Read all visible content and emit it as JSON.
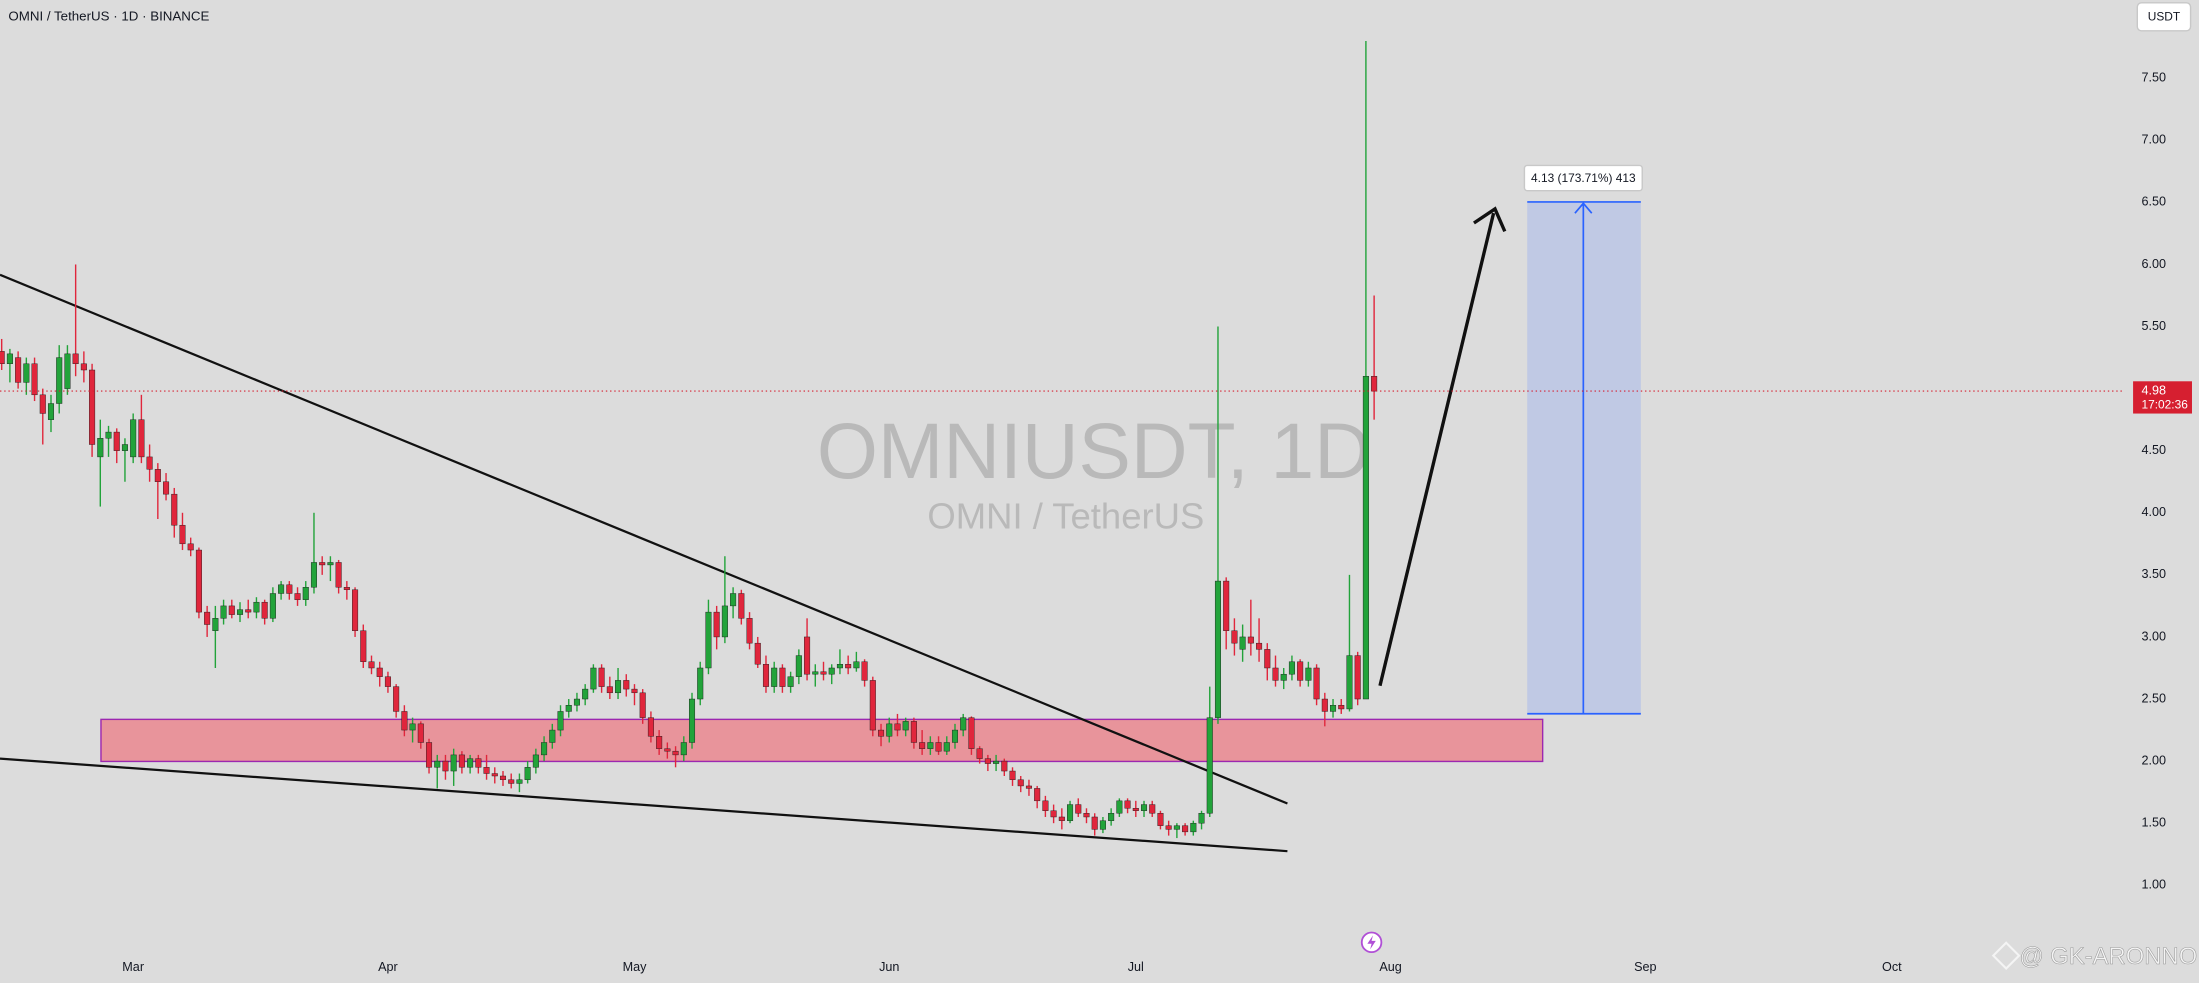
{
  "chart_data": {
    "type": "candlestick",
    "title": "OMNI / TetherUS · 1D · BINANCE",
    "watermark_symbol": "OMNIUSDT, 1D",
    "watermark_name": "OMNI / TetherUS",
    "currency": "USDT",
    "measure_label": "4.13 (173.71%) 413",
    "last_price": 4.98,
    "countdown": "17:02:36",
    "credit": "@ GK-ARONNO",
    "up_color": "#22a33a",
    "down_color": "#e0263c",
    "last_price_color": "#d61f30",
    "categories": [
      null,
      null,
      null,
      null,
      null,
      null,
      null,
      null,
      null,
      null,
      null,
      null,
      null,
      null,
      null,
      null,
      "Mar",
      null,
      null,
      null,
      null,
      null,
      null,
      null,
      null,
      null,
      null,
      null,
      null,
      null,
      null,
      null,
      null,
      null,
      null,
      null,
      null,
      null,
      null,
      null,
      null,
      null,
      null,
      null,
      null,
      null,
      null,
      "Apr",
      null,
      null,
      null,
      null,
      null,
      null,
      null,
      null,
      null,
      null,
      null,
      null,
      null,
      null,
      null,
      null,
      null,
      null,
      null,
      null,
      null,
      null,
      null,
      null,
      null,
      null,
      null,
      null,
      null,
      "May",
      null,
      null,
      null,
      null,
      null,
      null,
      null,
      null,
      null,
      null,
      null,
      null,
      null,
      null,
      null,
      null,
      null,
      null,
      null,
      null,
      null,
      null,
      null,
      null,
      null,
      null,
      null,
      null,
      null,
      null,
      "Jun",
      null,
      null,
      null,
      null,
      null,
      null,
      null,
      null,
      null,
      null,
      null,
      null,
      null,
      null,
      null,
      null,
      null,
      null,
      null,
      null,
      null,
      null,
      null,
      null,
      null,
      null,
      null,
      null,
      null,
      "Jul",
      null,
      null,
      null,
      null,
      null,
      null,
      null,
      null,
      null,
      null,
      null,
      null,
      null,
      null,
      null,
      null,
      null,
      null,
      null,
      null,
      null,
      null,
      null,
      null,
      null,
      null,
      null,
      null,
      null,
      null,
      "Aug",
      null,
      null,
      null,
      null,
      null,
      null,
      null,
      null,
      null,
      null,
      null,
      null,
      null,
      null,
      null,
      null,
      null,
      null,
      null,
      null,
      null,
      null,
      null,
      null,
      null,
      null,
      null,
      null,
      null,
      null,
      "Sep",
      null,
      null,
      null,
      null,
      null,
      null,
      null,
      null,
      null,
      null,
      null,
      null,
      null,
      null,
      null,
      null,
      null,
      null,
      null,
      null,
      null,
      null,
      null,
      null,
      null,
      null,
      null,
      null,
      null,
      "Oct",
      null,
      null,
      null,
      null,
      null,
      null,
      null,
      null,
      null,
      null,
      null,
      null,
      null,
      null,
      null,
      null,
      null,
      null,
      null,
      null,
      null,
      null,
      null,
      null,
      null,
      null,
      null
    ],
    "open": [
      5.3,
      5.2,
      5.25,
      5.05,
      5.2,
      4.95,
      4.75,
      4.88,
      5.0,
      5.28,
      5.2,
      5.15,
      4.45,
      4.6,
      4.65,
      4.5,
      4.45,
      4.75,
      4.45,
      4.35,
      4.25,
      4.15,
      3.9,
      3.75,
      3.7,
      3.2,
      3.05,
      3.15,
      3.25,
      3.18,
      3.22,
      3.2,
      3.28,
      3.15,
      3.35,
      3.42,
      3.35,
      3.3,
      3.4,
      3.6,
      3.58,
      3.6,
      3.4,
      3.38,
      3.05,
      2.8,
      2.75,
      2.68,
      2.6,
      2.4,
      2.25,
      2.3,
      2.15,
      1.95,
      2.0,
      1.92,
      2.05,
      1.95,
      2.02,
      1.95,
      1.9,
      1.88,
      1.85,
      1.82,
      1.85,
      1.95,
      2.05,
      2.15,
      2.25,
      2.4,
      2.45,
      2.5,
      2.58,
      2.75,
      2.6,
      2.55,
      2.65,
      2.58,
      2.55,
      2.35,
      2.2,
      2.1,
      2.08,
      2.05,
      2.15,
      2.5,
      2.75,
      3.2,
      3.0,
      3.25,
      3.35,
      3.15,
      2.95,
      2.78,
      2.6,
      2.75,
      2.6,
      2.68,
      3.0,
      2.7,
      2.72,
      2.7,
      2.75,
      2.78,
      2.75,
      2.8,
      2.65,
      2.25,
      2.2,
      2.3,
      2.25,
      2.32,
      2.15,
      2.1,
      2.15,
      2.08,
      2.15,
      2.25,
      2.35,
      2.1,
      2.02,
      1.98,
      2.0,
      1.92,
      1.85,
      1.8,
      1.78,
      1.68,
      1.6,
      1.55,
      1.52,
      1.65,
      1.58,
      1.55,
      1.45,
      1.52,
      1.58,
      1.68,
      1.62,
      1.6,
      1.65,
      1.58,
      1.48,
      1.45,
      1.48,
      1.43,
      1.5,
      1.58,
      2.35,
      3.45,
      3.05,
      2.9,
      3.0,
      2.95,
      2.9,
      2.75,
      2.65,
      2.7,
      2.8,
      2.65,
      2.75,
      2.5,
      2.4,
      2.45,
      2.42,
      2.85,
      2.5,
      5.1,
      null,
      null,
      null,
      null,
      null,
      null,
      null,
      null,
      null,
      null,
      null,
      null,
      null,
      null,
      null,
      null,
      null,
      null,
      null,
      null,
      null,
      null,
      null,
      null,
      null,
      null,
      null,
      null,
      null,
      null,
      null,
      null,
      null,
      null,
      null,
      null,
      null,
      null,
      null,
      null,
      null,
      null,
      null,
      null,
      null,
      null,
      null,
      null,
      null,
      null,
      null,
      null,
      null,
      null,
      null,
      null,
      null,
      null,
      null,
      null,
      null,
      null,
      null,
      null,
      null,
      null,
      null,
      null,
      null,
      null,
      null,
      null,
      null,
      null,
      null,
      null,
      null,
      null,
      null,
      null,
      null,
      null,
      null,
      null,
      null,
      null,
      null,
      null,
      null,
      null
    ],
    "high": [
      5.4,
      5.32,
      5.3,
      5.25,
      5.25,
      5.0,
      4.95,
      5.35,
      5.35,
      6.0,
      5.3,
      5.2,
      4.75,
      4.7,
      4.68,
      4.6,
      4.8,
      4.95,
      4.55,
      4.4,
      4.32,
      4.2,
      4.0,
      3.8,
      3.72,
      3.25,
      3.25,
      3.3,
      3.3,
      3.28,
      3.3,
      3.32,
      3.3,
      3.4,
      3.45,
      3.45,
      3.4,
      3.45,
      4.0,
      3.65,
      3.65,
      3.62,
      3.45,
      3.4,
      3.1,
      2.85,
      2.8,
      2.72,
      2.62,
      2.45,
      2.35,
      2.32,
      2.18,
      2.05,
      2.05,
      2.1,
      2.08,
      2.05,
      2.05,
      2.05,
      1.95,
      1.92,
      1.9,
      1.9,
      2.0,
      2.1,
      2.2,
      2.3,
      2.45,
      2.5,
      2.55,
      2.62,
      2.78,
      2.78,
      2.68,
      2.75,
      2.7,
      2.62,
      2.58,
      2.4,
      2.25,
      2.15,
      2.12,
      2.2,
      2.55,
      2.8,
      3.3,
      3.25,
      3.65,
      3.4,
      3.38,
      3.2,
      3.0,
      2.85,
      2.8,
      2.78,
      2.72,
      2.9,
      3.15,
      2.78,
      2.8,
      2.78,
      2.9,
      2.85,
      2.88,
      2.82,
      2.68,
      2.3,
      2.35,
      2.38,
      2.35,
      2.35,
      2.25,
      2.2,
      2.2,
      2.2,
      2.3,
      2.38,
      2.36,
      2.12,
      2.05,
      2.05,
      2.02,
      1.95,
      1.88,
      1.85,
      1.8,
      1.72,
      1.65,
      1.62,
      1.68,
      1.7,
      1.62,
      1.58,
      1.55,
      1.62,
      1.7,
      1.7,
      1.68,
      1.68,
      1.68,
      1.6,
      1.52,
      1.5,
      1.5,
      1.52,
      1.6,
      2.6,
      5.5,
      3.48,
      3.15,
      3.1,
      3.3,
      3.15,
      2.95,
      2.85,
      2.75,
      2.85,
      2.82,
      2.8,
      2.78,
      2.55,
      2.5,
      2.5,
      3.5,
      2.88,
      7.8,
      5.75,
      null,
      null,
      null,
      null,
      null,
      null,
      null,
      null,
      null,
      null,
      null,
      null,
      null,
      null,
      null,
      null,
      null,
      null,
      null,
      null,
      null,
      null,
      null,
      null,
      null,
      null,
      null,
      null,
      null,
      null,
      null,
      null,
      null,
      null,
      null,
      null,
      null,
      null,
      null,
      null,
      null,
      null,
      null,
      null,
      null,
      null,
      null,
      null,
      null,
      null,
      null,
      null,
      null,
      null,
      null,
      null,
      null,
      null,
      null,
      null,
      null,
      null,
      null,
      null,
      null,
      null,
      null,
      null,
      null,
      null,
      null,
      null,
      null,
      null,
      null,
      null,
      null,
      null,
      null,
      null,
      null,
      null,
      null,
      null,
      null,
      null,
      null,
      null,
      null,
      null
    ],
    "low": [
      5.15,
      5.05,
      5.0,
      4.95,
      4.9,
      4.55,
      4.65,
      4.8,
      4.95,
      5.1,
      5.05,
      4.45,
      4.05,
      4.45,
      4.4,
      4.25,
      4.4,
      4.4,
      4.25,
      3.95,
      4.1,
      3.8,
      3.7,
      3.65,
      3.15,
      3.0,
      2.75,
      3.1,
      3.15,
      3.12,
      3.15,
      3.15,
      3.1,
      3.12,
      3.3,
      3.3,
      3.25,
      3.25,
      3.35,
      3.5,
      3.45,
      3.35,
      3.3,
      3.0,
      2.75,
      2.7,
      2.6,
      2.55,
      2.35,
      2.2,
      2.15,
      2.1,
      1.9,
      1.78,
      1.85,
      1.8,
      1.9,
      1.9,
      1.9,
      1.85,
      1.82,
      1.8,
      1.78,
      1.75,
      1.82,
      1.9,
      2.0,
      2.1,
      2.2,
      2.35,
      2.4,
      2.45,
      2.55,
      2.55,
      2.5,
      2.5,
      2.52,
      2.45,
      2.3,
      2.15,
      2.05,
      2.02,
      1.95,
      2.0,
      2.1,
      2.45,
      2.7,
      2.9,
      2.95,
      3.15,
      3.1,
      2.9,
      2.75,
      2.55,
      2.55,
      2.55,
      2.55,
      2.62,
      2.65,
      2.6,
      2.65,
      2.62,
      2.7,
      2.7,
      2.72,
      2.6,
      2.2,
      2.12,
      2.15,
      2.2,
      2.2,
      2.1,
      2.05,
      2.05,
      2.05,
      2.05,
      2.1,
      2.2,
      2.05,
      1.98,
      1.92,
      1.92,
      1.88,
      1.8,
      1.75,
      1.72,
      1.62,
      1.55,
      1.5,
      1.45,
      1.5,
      1.55,
      1.5,
      1.4,
      1.42,
      1.48,
      1.55,
      1.58,
      1.55,
      1.55,
      1.55,
      1.45,
      1.4,
      1.38,
      1.4,
      1.4,
      1.45,
      1.55,
      2.3,
      2.9,
      2.85,
      2.8,
      2.85,
      2.8,
      2.65,
      2.6,
      2.58,
      2.65,
      2.6,
      2.6,
      2.45,
      2.28,
      2.35,
      2.38,
      2.4,
      2.45,
      2.5,
      4.75,
      null,
      null,
      null,
      null,
      null,
      null,
      null,
      null,
      null,
      null,
      null,
      null,
      null,
      null,
      null,
      null,
      null,
      null,
      null,
      null,
      null,
      null,
      null,
      null,
      null,
      null,
      null,
      null,
      null,
      null,
      null,
      null,
      null,
      null,
      null,
      null,
      null,
      null,
      null,
      null,
      null,
      null,
      null,
      null,
      null,
      null,
      null,
      null,
      null,
      null,
      null,
      null,
      null,
      null,
      null,
      null,
      null,
      null,
      null,
      null,
      null,
      null,
      null,
      null,
      null,
      null,
      null,
      null,
      null,
      null,
      null,
      null,
      null,
      null,
      null,
      null,
      null,
      null,
      null,
      null,
      null,
      null,
      null,
      null,
      null,
      null,
      null,
      null,
      null,
      null
    ],
    "close": [
      5.2,
      5.28,
      5.05,
      5.2,
      4.95,
      4.8,
      4.88,
      5.25,
      5.28,
      5.2,
      5.15,
      4.55,
      4.6,
      4.65,
      4.5,
      4.55,
      4.75,
      4.45,
      4.35,
      4.25,
      4.15,
      3.9,
      3.75,
      3.7,
      3.2,
      3.1,
      3.15,
      3.25,
      3.18,
      3.22,
      3.2,
      3.28,
      3.15,
      3.35,
      3.42,
      3.35,
      3.3,
      3.4,
      3.6,
      3.58,
      3.6,
      3.4,
      3.38,
      3.05,
      2.8,
      2.75,
      2.68,
      2.6,
      2.4,
      2.25,
      2.3,
      2.15,
      1.95,
      2.0,
      1.92,
      2.05,
      1.95,
      2.02,
      1.95,
      1.9,
      1.88,
      1.85,
      1.82,
      1.85,
      1.95,
      2.05,
      2.15,
      2.25,
      2.4,
      2.45,
      2.5,
      2.58,
      2.75,
      2.6,
      2.55,
      2.65,
      2.58,
      2.55,
      2.35,
      2.2,
      2.1,
      2.08,
      2.05,
      2.15,
      2.5,
      2.75,
      3.2,
      3.0,
      3.25,
      3.35,
      3.15,
      2.95,
      2.78,
      2.6,
      2.75,
      2.6,
      2.68,
      2.85,
      2.7,
      2.72,
      2.7,
      2.75,
      2.78,
      2.75,
      2.8,
      2.65,
      2.25,
      2.2,
      2.3,
      2.25,
      2.32,
      2.15,
      2.1,
      2.15,
      2.08,
      2.15,
      2.25,
      2.35,
      2.1,
      2.02,
      1.98,
      2.0,
      1.92,
      1.85,
      1.8,
      1.78,
      1.68,
      1.6,
      1.55,
      1.52,
      1.65,
      1.58,
      1.55,
      1.45,
      1.52,
      1.58,
      1.68,
      1.62,
      1.6,
      1.65,
      1.58,
      1.48,
      1.45,
      1.48,
      1.43,
      1.5,
      1.58,
      2.35,
      3.45,
      3.05,
      2.95,
      3.0,
      2.95,
      2.9,
      2.75,
      2.65,
      2.7,
      2.8,
      2.65,
      2.75,
      2.5,
      2.4,
      2.45,
      2.42,
      2.85,
      2.5,
      5.1,
      4.98,
      null,
      null,
      null,
      null,
      null,
      null,
      null,
      null,
      null,
      null,
      null,
      null,
      null,
      null,
      null,
      null,
      null,
      null,
      null,
      null,
      null,
      null,
      null,
      null,
      null,
      null,
      null,
      null,
      null,
      null,
      null,
      null,
      null,
      null,
      null,
      null,
      null,
      null,
      null,
      null,
      null,
      null,
      null,
      null,
      null,
      null,
      null,
      null,
      null,
      null,
      null,
      null,
      null,
      null,
      null,
      null,
      null,
      null,
      null,
      null,
      null,
      null,
      null,
      null,
      null,
      null,
      null,
      null,
      null,
      null,
      null,
      null,
      null,
      null,
      null,
      null,
      null,
      null,
      null,
      null,
      null,
      null,
      null,
      null,
      null,
      null,
      null,
      null,
      null,
      null
    ],
    "ylim": [
      0.45,
      8.13
    ],
    "yticks": [
      {
        "value": 1,
        "label": "1.00"
      },
      {
        "value": 1.5,
        "label": "1.50"
      },
      {
        "value": 2,
        "label": "2.00"
      },
      {
        "value": 2.5,
        "label": "2.50"
      },
      {
        "value": 3,
        "label": "3.00"
      },
      {
        "value": 3.5,
        "label": "3.50"
      },
      {
        "value": 4,
        "label": "4.00"
      },
      {
        "value": 4.5,
        "label": "4.50"
      },
      {
        "value": 5,
        "label": "5.00"
      },
      {
        "value": 5.5,
        "label": "5.50"
      },
      {
        "value": 6,
        "label": "6.00"
      },
      {
        "value": 6.5,
        "label": "6.50"
      },
      {
        "value": 7,
        "label": "7.00"
      },
      {
        "value": 7.5,
        "label": "7.50"
      }
    ],
    "grid": false
  }
}
